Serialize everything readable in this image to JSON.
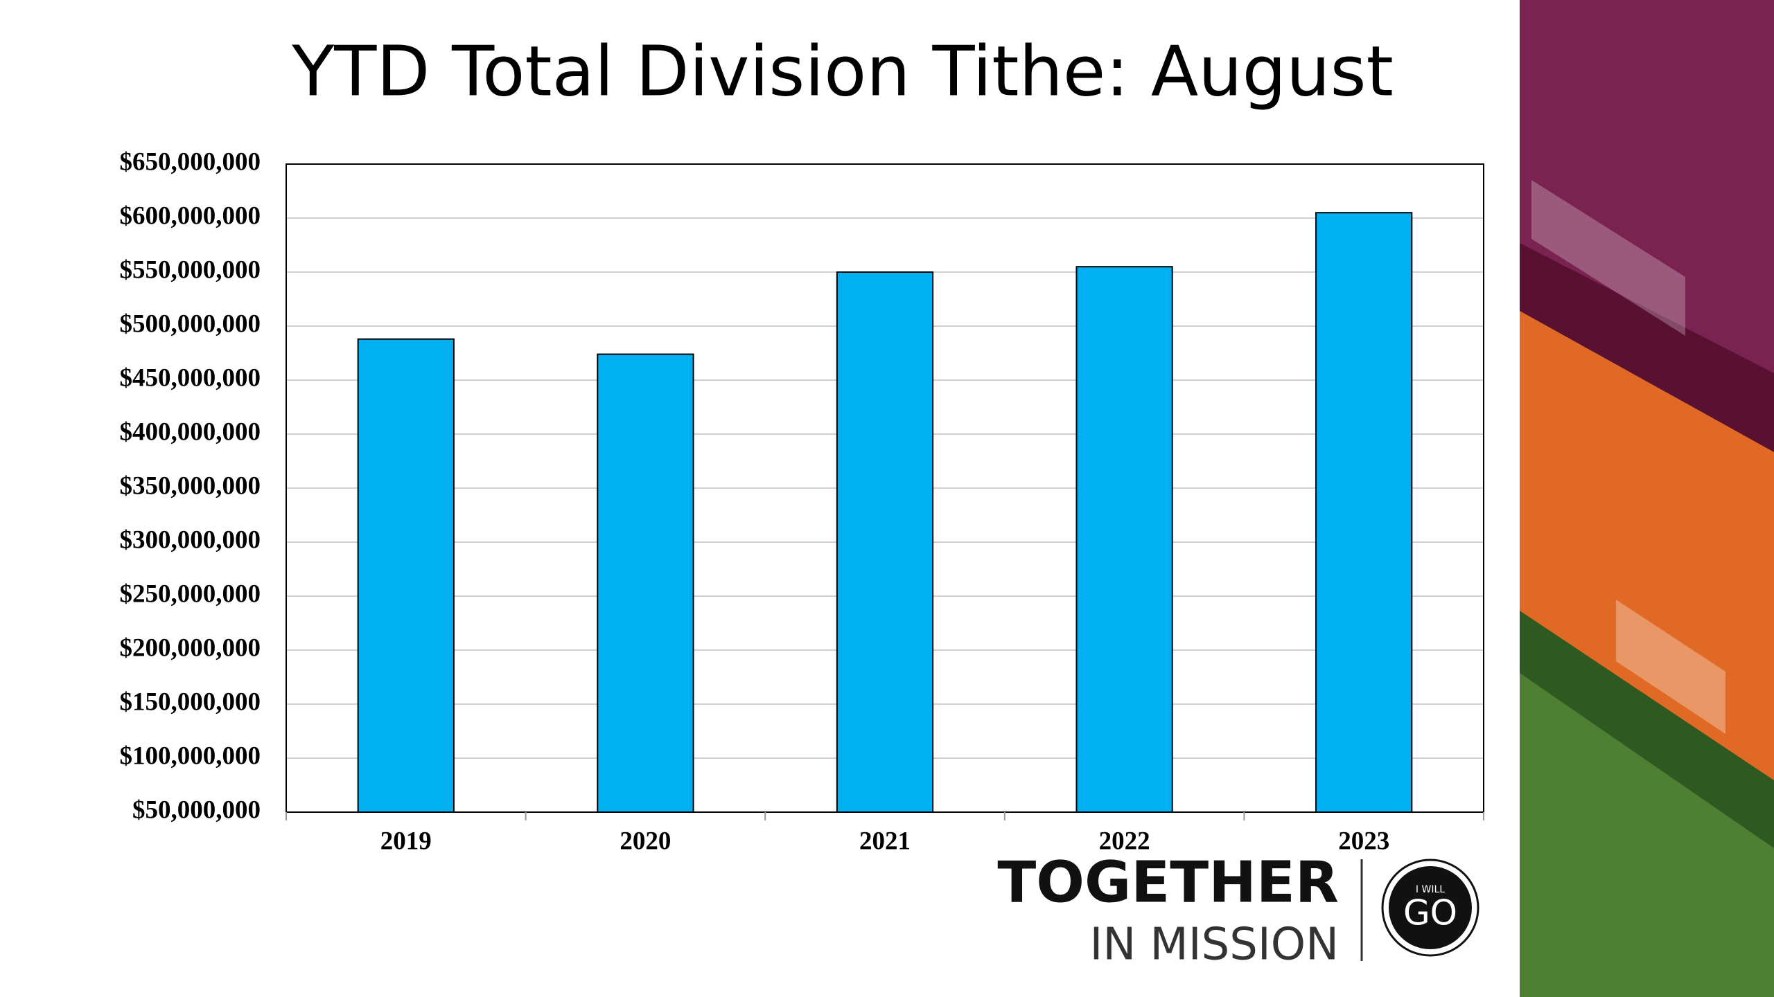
{
  "chart_data": {
    "type": "bar",
    "title": "YTD Total Division Tithe: August",
    "categories": [
      "2019",
      "2020",
      "2021",
      "2022",
      "2023"
    ],
    "values": [
      488000000,
      474000000,
      550000000,
      555000000,
      605000000
    ],
    "color": "#00b0f0",
    "ylim": [
      50000000,
      650000000
    ],
    "yticks": [
      {
        "value": 50000000,
        "label": "$50,000,000"
      },
      {
        "value": 100000000,
        "label": "$100,000,000"
      },
      {
        "value": 150000000,
        "label": "$150,000,000"
      },
      {
        "value": 200000000,
        "label": "$200,000,000"
      },
      {
        "value": 250000000,
        "label": "$250,000,000"
      },
      {
        "value": 300000000,
        "label": "$300,000,000"
      },
      {
        "value": 350000000,
        "label": "$350,000,000"
      },
      {
        "value": 400000000,
        "label": "$400,000,000"
      },
      {
        "value": 450000000,
        "label": "$450,000,000"
      },
      {
        "value": 500000000,
        "label": "$500,000,000"
      },
      {
        "value": 550000000,
        "label": "$550,000,000"
      },
      {
        "value": 600000000,
        "label": "$600,000,000"
      },
      {
        "value": 650000000,
        "label": "$650,000,000"
      }
    ],
    "grid": true
  },
  "branding": {
    "line1": "TOGETHER",
    "line2": "IN MISSION",
    "badge_top": "I WILL",
    "badge_main": "GO"
  }
}
